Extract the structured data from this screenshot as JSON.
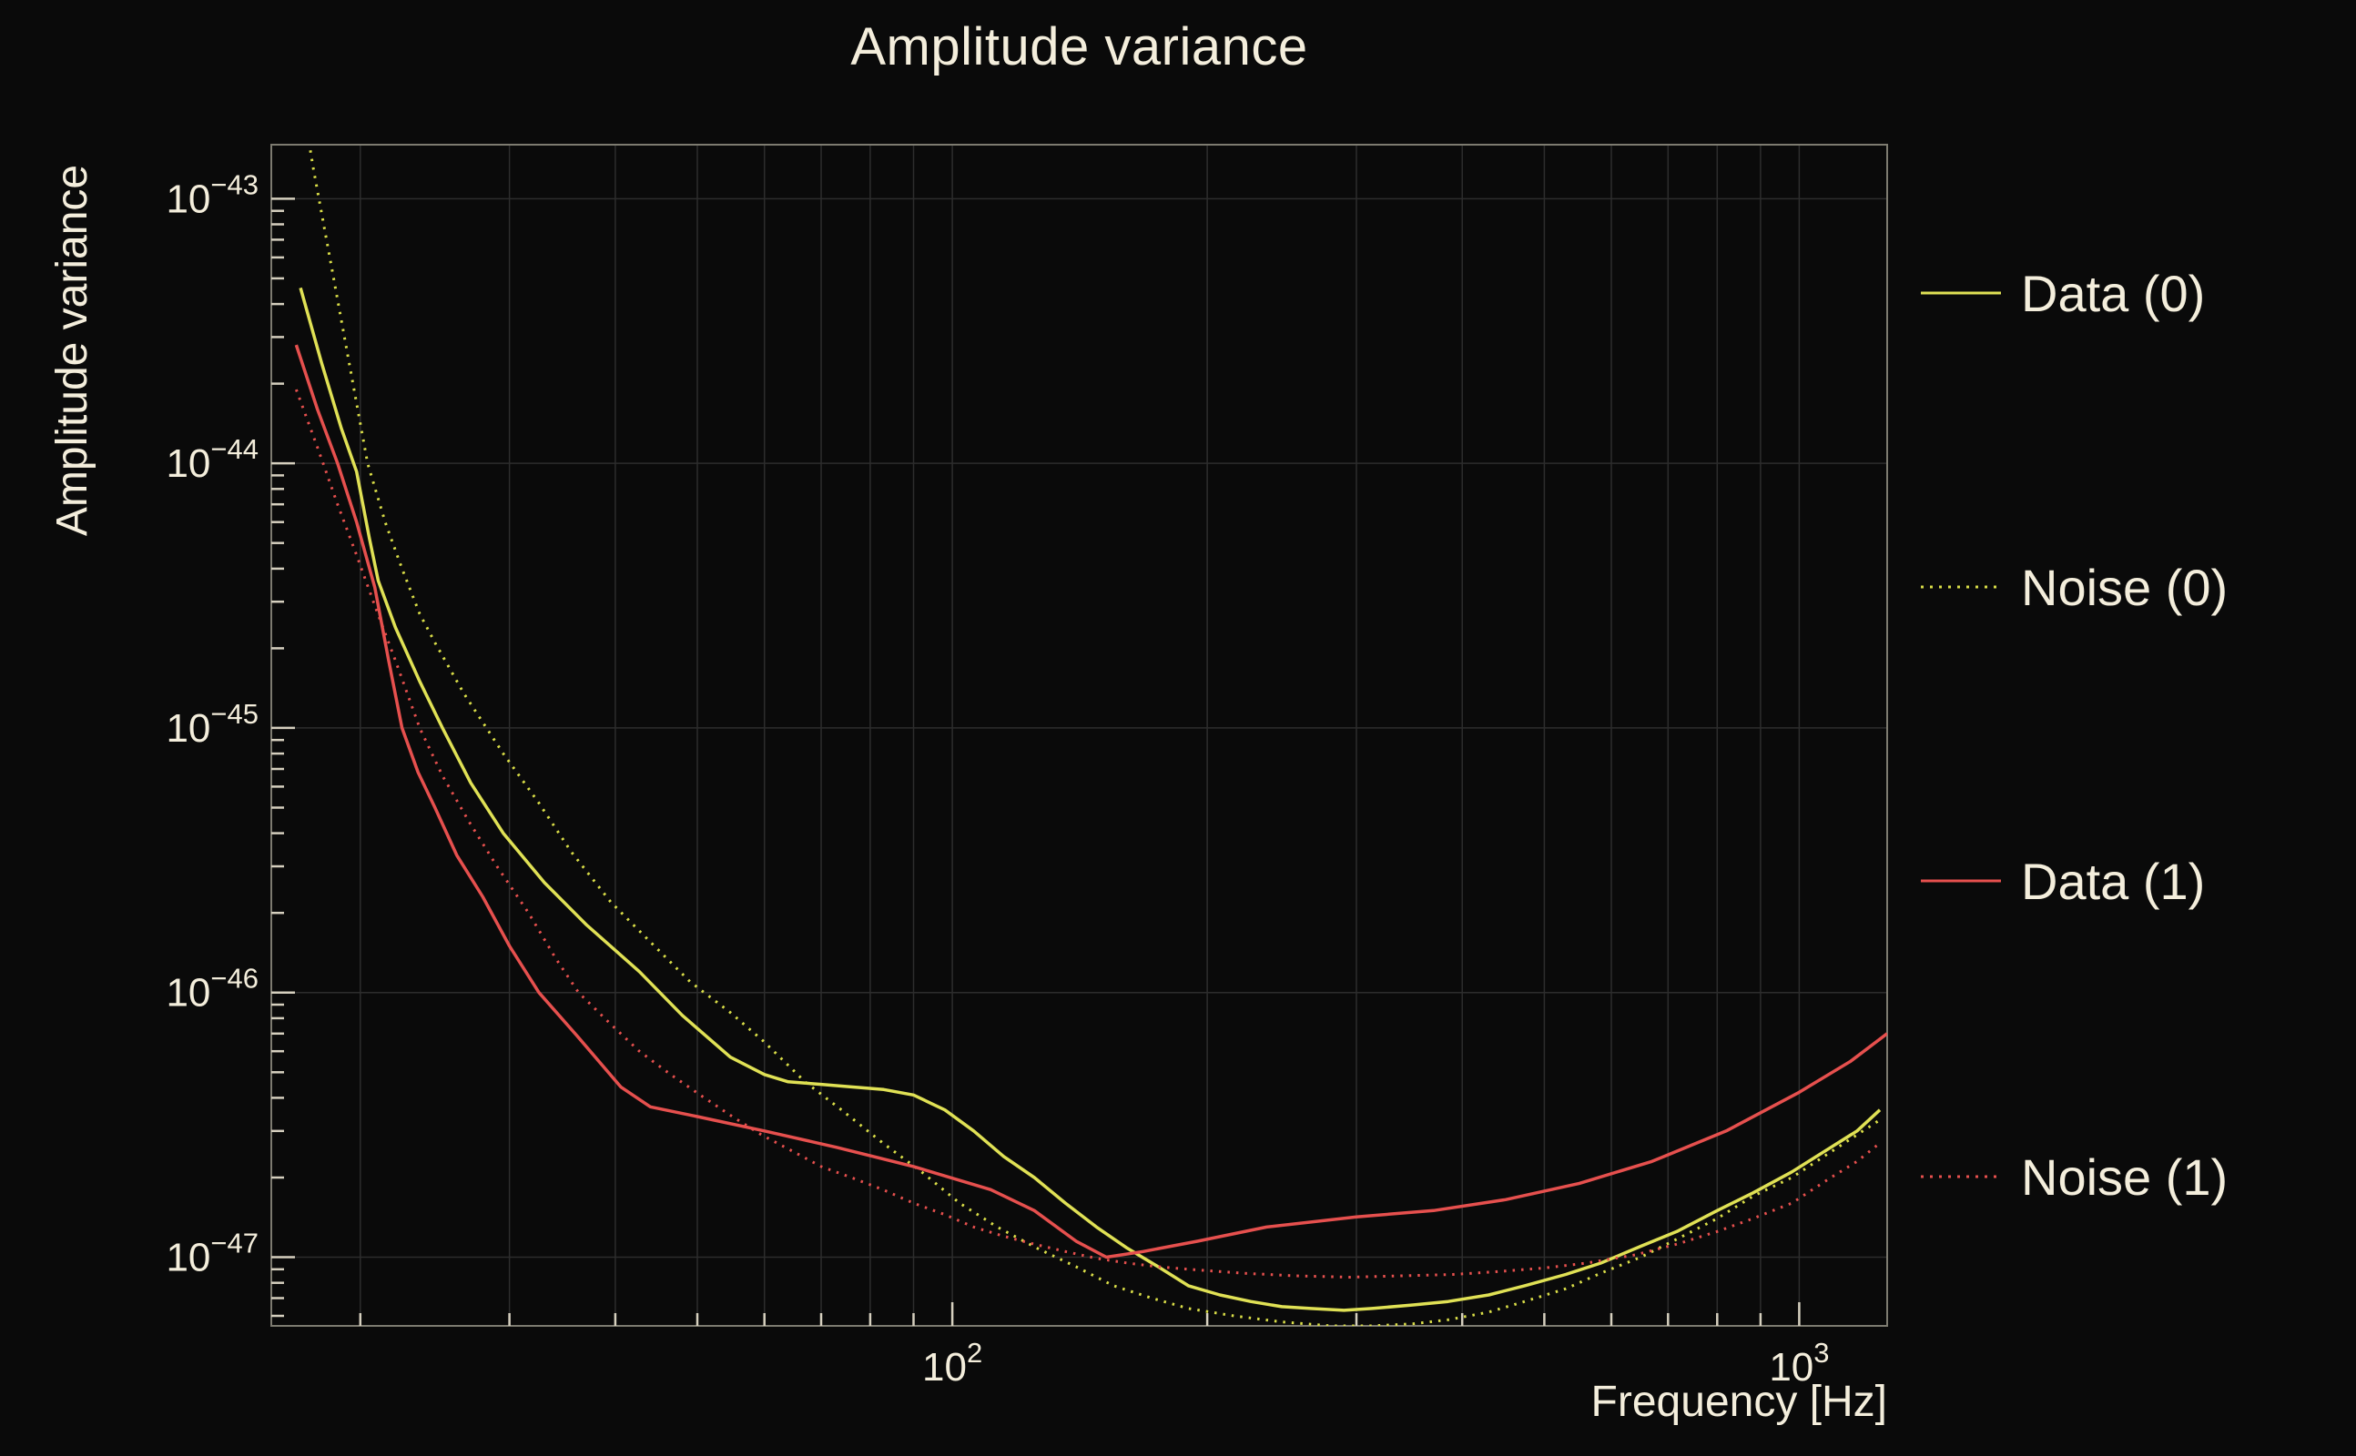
{
  "page": {
    "background": "#0a0a0a",
    "text_color": "#f4eedc"
  },
  "chart": {
    "title": "Amplitude variance",
    "ylabel": "Amplitude variance",
    "xlabel": "Frequency [Hz]",
    "legend": [
      {
        "label": "Data (0)",
        "color": "#e0e155",
        "style": "solid"
      },
      {
        "label": "Noise (0)",
        "color": "#dade48",
        "style": "dotted"
      },
      {
        "label": "Data (1)",
        "color": "#e6504e",
        "style": "solid"
      },
      {
        "label": "Noise (1)",
        "color": "#e6504e",
        "style": "dotted"
      }
    ]
  },
  "chart_data": {
    "type": "line",
    "title": "Amplitude variance",
    "xlabel": "Frequency [Hz]",
    "ylabel": "Amplitude variance",
    "x_scale": "log",
    "y_scale": "log",
    "x_range": [
      15.7,
      1270
    ],
    "y_range": [
      5.5e-48,
      1.6e-43
    ],
    "x_ticks_labeled": [
      100,
      1000
    ],
    "y_ticks_labeled": [
      1e-47,
      1e-46,
      1e-45,
      1e-44,
      1e-43
    ],
    "grid": true,
    "legend_position": "right-outside",
    "series": [
      {
        "name": "Data (0)",
        "color": "#e0e155",
        "style": "solid",
        "points": [
          [
            17,
            4.6e-44
          ],
          [
            18,
            2.4e-44
          ],
          [
            19,
            1.35e-44
          ],
          [
            19.8,
            9.3e-45
          ],
          [
            20.5,
            5.2e-45
          ],
          [
            21,
            3.6e-45
          ],
          [
            22,
            2.4e-45
          ],
          [
            23.5,
            1.5e-45
          ],
          [
            25,
            1e-45
          ],
          [
            27,
            6.2e-46
          ],
          [
            29.5,
            4e-46
          ],
          [
            33,
            2.6e-46
          ],
          [
            37,
            1.8e-46
          ],
          [
            42.7,
            1.2e-46
          ],
          [
            48,
            8.2e-47
          ],
          [
            54.7,
            5.7e-47
          ],
          [
            60,
            4.9e-47
          ],
          [
            64,
            4.6e-47
          ],
          [
            70,
            4.5e-47
          ],
          [
            76,
            4.4e-47
          ],
          [
            83,
            4.3e-47
          ],
          [
            90,
            4.1e-47
          ],
          [
            98,
            3.6e-47
          ],
          [
            106,
            3e-47
          ],
          [
            115,
            2.4e-47
          ],
          [
            125,
            2e-47
          ],
          [
            136,
            1.6e-47
          ],
          [
            148,
            1.3e-47
          ],
          [
            161,
            1.08e-47
          ],
          [
            175,
            9.2e-48
          ],
          [
            190,
            7.8e-48
          ],
          [
            207,
            7.2e-48
          ],
          [
            225,
            6.8e-48
          ],
          [
            245,
            6.5e-48
          ],
          [
            265,
            6.4e-48
          ],
          [
            290,
            6.3e-48
          ],
          [
            313,
            6.4e-48
          ],
          [
            350,
            6.6e-48
          ],
          [
            385,
            6.8e-48
          ],
          [
            430,
            7.2e-48
          ],
          [
            474,
            7.8e-48
          ],
          [
            530,
            8.6e-48
          ],
          [
            583,
            9.5e-48
          ],
          [
            650,
            1.1e-47
          ],
          [
            717,
            1.25e-47
          ],
          [
            800,
            1.5e-47
          ],
          [
            882,
            1.75e-47
          ],
          [
            980,
            2.1e-47
          ],
          [
            1090,
            2.6e-47
          ],
          [
            1170,
            3e-47
          ],
          [
            1245,
            3.6e-47
          ]
        ]
      },
      {
        "name": "Noise (0)",
        "color": "#dade48",
        "style": "dotted",
        "points": [
          [
            16.8,
            3.2e-43
          ],
          [
            17.6,
            1.3e-43
          ],
          [
            18.5,
            5.5e-44
          ],
          [
            19.4,
            2.4e-44
          ],
          [
            20.4,
            1e-44
          ],
          [
            21.4,
            6e-45
          ],
          [
            22.4,
            4e-45
          ],
          [
            23.5,
            2.7e-45
          ],
          [
            24.5,
            2.1e-45
          ],
          [
            26.5,
            1.35e-45
          ],
          [
            29.5,
            8e-46
          ],
          [
            32.5,
            5.2e-46
          ],
          [
            35.5,
            3.4e-46
          ],
          [
            39.5,
            2.2e-46
          ],
          [
            43.6,
            1.6e-46
          ],
          [
            49,
            1.1e-46
          ],
          [
            54.7,
            8.4e-47
          ],
          [
            60,
            6.5e-47
          ],
          [
            67,
            4.6e-47
          ],
          [
            74,
            3.6e-47
          ],
          [
            82.8,
            2.7e-47
          ],
          [
            92,
            2.1e-47
          ],
          [
            102,
            1.6e-47
          ],
          [
            113,
            1.3e-47
          ],
          [
            126,
            1.08e-47
          ],
          [
            140,
            9.2e-48
          ],
          [
            155,
            7.8e-48
          ],
          [
            172,
            7e-48
          ],
          [
            190,
            6.4e-48
          ],
          [
            215,
            6e-48
          ],
          [
            244,
            5.7e-48
          ],
          [
            280,
            5.5e-48
          ],
          [
            313,
            5.5e-48
          ],
          [
            350,
            5.6e-48
          ],
          [
            385,
            5.8e-48
          ],
          [
            430,
            6.2e-48
          ],
          [
            474,
            6.8e-48
          ],
          [
            530,
            7.6e-48
          ],
          [
            583,
            8.7e-48
          ],
          [
            650,
            1e-47
          ],
          [
            717,
            1.17e-47
          ],
          [
            800,
            1.4e-47
          ],
          [
            882,
            1.7e-47
          ],
          [
            980,
            2e-47
          ],
          [
            1090,
            2.5e-47
          ],
          [
            1170,
            2.9e-47
          ],
          [
            1245,
            3.3e-47
          ]
        ]
      },
      {
        "name": "Data (1)",
        "color": "#e6504e",
        "style": "solid",
        "points": [
          [
            16.8,
            2.8e-44
          ],
          [
            17.8,
            1.6e-44
          ],
          [
            18.8,
            1e-44
          ],
          [
            19.8,
            6e-45
          ],
          [
            20.8,
            3.4e-45
          ],
          [
            21.6,
            1.8e-45
          ],
          [
            22.4,
            1e-45
          ],
          [
            23.4,
            6.8e-46
          ],
          [
            24.5,
            5e-46
          ],
          [
            26,
            3.3e-46
          ],
          [
            27.9,
            2.3e-46
          ],
          [
            30,
            1.5e-46
          ],
          [
            32.5,
            1e-46
          ],
          [
            36,
            6.9e-47
          ],
          [
            40.6,
            4.4e-47
          ],
          [
            44,
            3.7e-47
          ],
          [
            50,
            3.4e-47
          ],
          [
            60,
            3e-47
          ],
          [
            73,
            2.6e-47
          ],
          [
            90,
            2.2e-47
          ],
          [
            111,
            1.8e-47
          ],
          [
            125,
            1.5e-47
          ],
          [
            140,
            1.15e-47
          ],
          [
            152,
            1e-47
          ],
          [
            168,
            1.05e-47
          ],
          [
            195,
            1.15e-47
          ],
          [
            235,
            1.3e-47
          ],
          [
            300,
            1.42e-47
          ],
          [
            370,
            1.5e-47
          ],
          [
            450,
            1.65e-47
          ],
          [
            550,
            1.9e-47
          ],
          [
            670,
            2.3e-47
          ],
          [
            820,
            3e-47
          ],
          [
            1000,
            4.2e-47
          ],
          [
            1150,
            5.5e-47
          ],
          [
            1270,
            7e-47
          ]
        ]
      },
      {
        "name": "Noise (1)",
        "color": "#e6504e",
        "style": "dotted",
        "points": [
          [
            16.8,
            1.9e-44
          ],
          [
            17.8,
            1.15e-44
          ],
          [
            18.8,
            7e-45
          ],
          [
            19.8,
            4.5e-45
          ],
          [
            20.8,
            2.9e-45
          ],
          [
            22,
            1.8e-45
          ],
          [
            23.5,
            1e-45
          ],
          [
            25,
            6.6e-46
          ],
          [
            26.9,
            4.4e-46
          ],
          [
            29,
            3e-46
          ],
          [
            31.6,
            2e-46
          ],
          [
            34,
            1.35e-46
          ],
          [
            36.2,
            1e-46
          ],
          [
            39.5,
            7.6e-47
          ],
          [
            42.7,
            6e-47
          ],
          [
            46.5,
            4.9e-47
          ],
          [
            50.4,
            4.1e-47
          ],
          [
            55,
            3.4e-47
          ],
          [
            59.5,
            2.9e-47
          ],
          [
            65,
            2.5e-47
          ],
          [
            70,
            2.2e-47
          ],
          [
            76,
            2e-47
          ],
          [
            82.8,
            1.8e-47
          ],
          [
            90,
            1.6e-47
          ],
          [
            97.9,
            1.45e-47
          ],
          [
            106,
            1.3e-47
          ],
          [
            115,
            1.2e-47
          ],
          [
            125,
            1.12e-47
          ],
          [
            136,
            1.05e-47
          ],
          [
            148,
            9.9e-48
          ],
          [
            161,
            9.5e-48
          ],
          [
            175,
            9.2e-48
          ],
          [
            190,
            9e-48
          ],
          [
            220,
            8.7e-48
          ],
          [
            254,
            8.5e-48
          ],
          [
            295,
            8.4e-48
          ],
          [
            340,
            8.5e-48
          ],
          [
            390,
            8.6e-48
          ],
          [
            437,
            8.8e-48
          ],
          [
            500,
            9.1e-48
          ],
          [
            561,
            9.5e-48
          ],
          [
            640,
            1.02e-47
          ],
          [
            717,
            1.12e-47
          ],
          [
            800,
            1.25e-47
          ],
          [
            882,
            1.4e-47
          ],
          [
            980,
            1.6e-47
          ],
          [
            1090,
            2e-47
          ],
          [
            1170,
            2.3e-47
          ],
          [
            1245,
            2.7e-47
          ]
        ]
      }
    ]
  }
}
